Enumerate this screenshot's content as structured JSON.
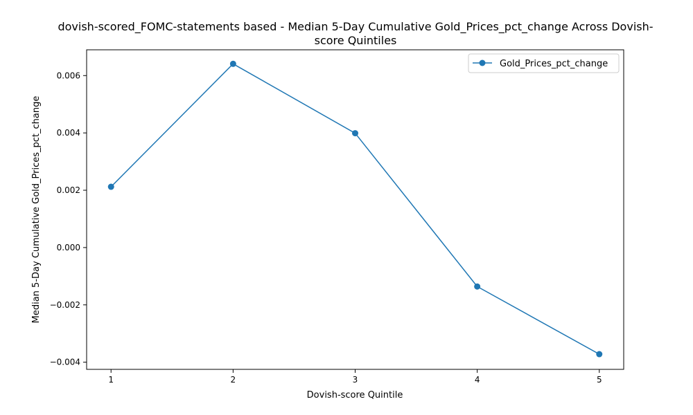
{
  "chart_data": {
    "type": "line",
    "title_lines": [
      "dovish-scored_FOMC-statements based - Median 5-Day Cumulative Gold_Prices_pct_change Across Dovish-",
      "score Quintiles"
    ],
    "xlabel": "Dovish-score Quintile",
    "ylabel": "Median 5-Day Cumulative Gold_Prices_pct_change",
    "x": [
      1,
      2,
      3,
      4,
      5
    ],
    "x_tick_labels": [
      "1",
      "2",
      "3",
      "4",
      "5"
    ],
    "xlim": [
      0.8,
      5.2
    ],
    "ylim": [
      -0.00425,
      0.0069
    ],
    "y_ticks": [
      -0.004,
      -0.002,
      0.0,
      0.002,
      0.004,
      0.006
    ],
    "y_tick_labels": [
      "−0.004",
      "−0.002",
      "0.000",
      "0.002",
      "0.004",
      "0.006"
    ],
    "series": [
      {
        "name": "Gold_Prices_pct_change",
        "values": [
          0.00212,
          0.00641,
          0.00399,
          -0.00136,
          -0.00372
        ],
        "color": "#1f77b4",
        "marker": "circle"
      }
    ],
    "grid": false,
    "legend_position": "top-right"
  }
}
